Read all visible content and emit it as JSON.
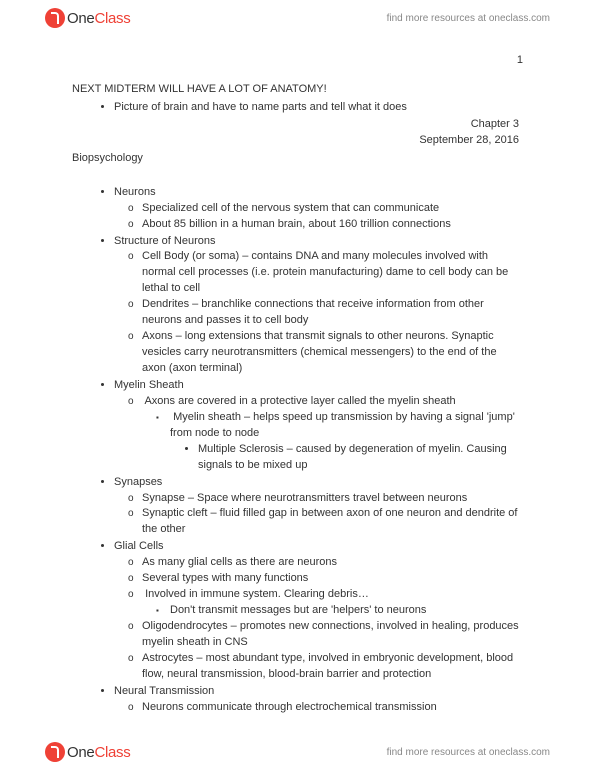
{
  "header": {
    "logo_one": "One",
    "logo_class": "Class",
    "link_text": "find more resources at oneclass.com"
  },
  "page_number": "1",
  "doc": {
    "title": "NEXT MIDTERM WILL HAVE A LOT OF ANATOMY!",
    "intro_bullet": "Picture of brain and have to name parts and tell what it does",
    "chapter": "Chapter 3",
    "date": "September 28, 2016",
    "subject": "Biopsychology"
  },
  "sections": {
    "neurons": {
      "h": "Neurons",
      "i1": "Specialized cell of the nervous system that can communicate",
      "i2": "About 85 billion in a human brain, about 160 trillion connections"
    },
    "structure": {
      "h": "Structure of Neurons",
      "i1": "Cell Body (or soma) – contains DNA and many molecules involved with normal cell processes (i.e. protein manufacturing) dame to cell body can be lethal to cell",
      "i2": "Dendrites – branchlike connections that receive information from other neurons and passes it to cell body",
      "i3": "Axons – long extensions that transmit signals to other neurons. Synaptic vesicles carry neurotransmitters (chemical messengers) to the end of the axon (axon terminal)"
    },
    "myelin": {
      "h": "Myelin Sheath",
      "i1": "Axons are covered in a protective layer called the myelin sheath",
      "s1": "Myelin sheath – helps speed up transmission by having a signal 'jump' from node to node",
      "ss1": "Multiple Sclerosis – caused by degeneration of myelin. Causing signals to be mixed up"
    },
    "synapses": {
      "h": "Synapses",
      "i1": "Synapse – Space where neurotransmitters travel between neurons",
      "i2": "Synaptic cleft – fluid filled gap in between axon of one neuron and dendrite of the other"
    },
    "glial": {
      "h": "Glial Cells",
      "i1": "As many glial cells as there are neurons",
      "i2": "Several types with many functions",
      "i3": "Involved in immune system. Clearing debris…",
      "s1": "Don't transmit messages but are 'helpers' to neurons",
      "i4": "Oligodendrocytes – promotes new connections, involved in healing, produces myelin sheath in CNS",
      "i5": "Astrocytes – most abundant type, involved in embryonic development, blood flow, neural transmission, blood-brain barrier and protection"
    },
    "neural": {
      "h": "Neural Transmission",
      "i1": "Neurons communicate through electrochemical transmission"
    }
  },
  "footer": {
    "link_text": "find more resources at oneclass.com"
  }
}
